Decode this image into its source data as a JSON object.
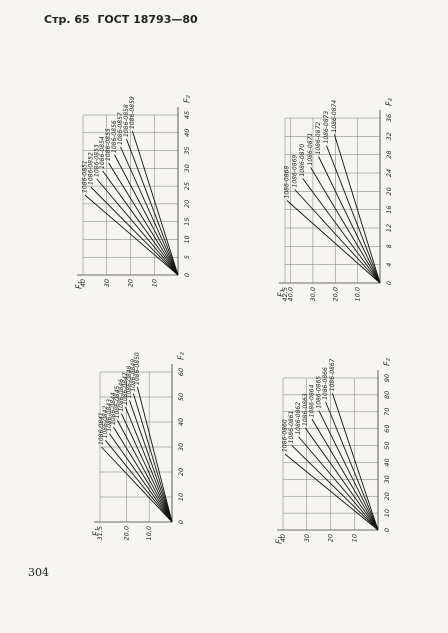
{
  "header": {
    "page_label": "Стр. 65",
    "standard": "ГОСТ 18793—80"
  },
  "page_number": "304",
  "figures": [
    {
      "x_label": "F₂",
      "y_label": "F₁",
      "xlim": [
        0,
        45
      ],
      "xticks": [
        0,
        5,
        10,
        15,
        20,
        25,
        30,
        35,
        40,
        45
      ],
      "ylim": [
        0,
        40
      ],
      "yticks": [
        10,
        20,
        30,
        40
      ],
      "lines": [
        "1086-0851",
        "1086-0852",
        "1086-0853",
        "1086-0854",
        "1086-0855",
        "1086-0856",
        "1086-0857",
        "1086-0858",
        "1086-0859"
      ]
    },
    {
      "x_label": "F₂",
      "y_label": "F₁",
      "xlim": [
        0,
        36
      ],
      "xticks": [
        0,
        4,
        8,
        12,
        16,
        20,
        24,
        28,
        32,
        36
      ],
      "ylim": [
        0,
        42.5
      ],
      "yticks": [
        {
          "value": 10,
          "label": "10,0"
        },
        {
          "value": 20,
          "label": "20,0"
        },
        {
          "value": 30,
          "label": "30,0"
        },
        {
          "value": 40,
          "label": "40,0"
        },
        {
          "value": 42.5,
          "label": "42,5"
        }
      ],
      "lines": [
        "1086-0868",
        "1086-0869",
        "1086-0870",
        "1086-0871",
        "1086-0872",
        "1086-0873",
        "1086-0874"
      ]
    },
    {
      "x_label": "F₂",
      "y_label": "F₁",
      "xlim": [
        0,
        60
      ],
      "xticks": [
        0,
        10,
        20,
        30,
        40,
        50,
        60
      ],
      "ylim": [
        0,
        31.5
      ],
      "yticks": [
        {
          "value": 10,
          "label": "10,0"
        },
        {
          "value": 20,
          "label": "20,0"
        },
        {
          "value": 31.5,
          "label": "31,5"
        }
      ],
      "lines": [
        "1086-0841",
        "1086-0842",
        "1086-0843",
        "1086-0844",
        "1086-0845",
        "1086-0846",
        "1086-0847",
        "1086-0848",
        "1086-0849",
        "1086-0850"
      ]
    },
    {
      "x_label": "F₂",
      "y_label": "F₁",
      "xlim": [
        0,
        90
      ],
      "xticks": [
        0,
        10,
        20,
        30,
        40,
        50,
        60,
        70,
        80,
        90
      ],
      "ylim": [
        0,
        40
      ],
      "yticks": [
        10,
        20,
        30,
        40
      ],
      "lines": [
        "1086-0860",
        "1086-0861",
        "1086-0862",
        "1086-0863",
        "1086-0864",
        "1086-0865",
        "1086-0866",
        "1086-0867"
      ]
    }
  ]
}
